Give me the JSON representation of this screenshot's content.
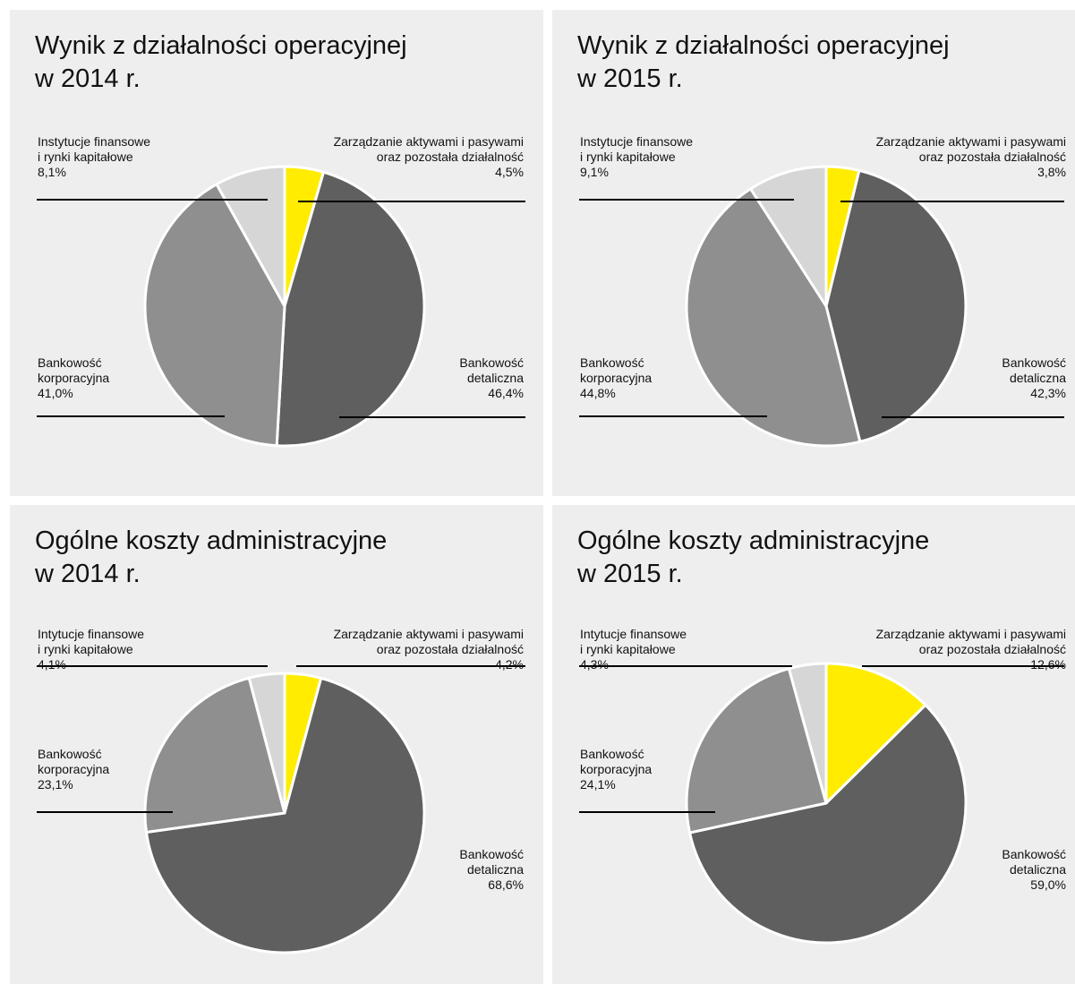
{
  "chart_data": [
    {
      "type": "pie",
      "title": [
        "Wynik z działalności operacyjnej",
        "w 2014 r."
      ],
      "slices": [
        {
          "label": [
            "Zarządzanie aktywami i pasywami",
            "oraz pozostała działalność"
          ],
          "value_label": "4,5%",
          "value": 4.5,
          "color": "#ffec00"
        },
        {
          "label": [
            "Bankowość",
            "detaliczna"
          ],
          "value_label": "46,4%",
          "value": 46.4,
          "color": "#5f5f5f"
        },
        {
          "label": [
            "Bankowość",
            "korporacyjna"
          ],
          "value_label": "41,0%",
          "value": 41.0,
          "color": "#8f8f8f"
        },
        {
          "label": [
            "Instytucje finansowe",
            "i rynki kapitałowe"
          ],
          "value_label": "8,1%",
          "value": 8.1,
          "color": "#d6d6d6"
        }
      ]
    },
    {
      "type": "pie",
      "title": [
        "Wynik z działalności operacyjnej",
        "w 2015 r."
      ],
      "slices": [
        {
          "label": [
            "Zarządzanie aktywami i pasywami",
            "oraz pozostała działalność"
          ],
          "value_label": "3,8%",
          "value": 3.8,
          "color": "#ffec00"
        },
        {
          "label": [
            "Bankowość",
            "detaliczna"
          ],
          "value_label": "42,3%",
          "value": 42.3,
          "color": "#5f5f5f"
        },
        {
          "label": [
            "Bankowość",
            "korporacyjna"
          ],
          "value_label": "44,8%",
          "value": 44.8,
          "color": "#8f8f8f"
        },
        {
          "label": [
            "Instytucje finansowe",
            "i rynki kapitałowe"
          ],
          "value_label": "9,1%",
          "value": 9.1,
          "color": "#d6d6d6"
        }
      ]
    },
    {
      "type": "pie",
      "title": [
        "Ogólne koszty administracyjne",
        "w 2014 r."
      ],
      "slices": [
        {
          "label": [
            "Zarządzanie aktywami i pasywami",
            "oraz pozostała działalność"
          ],
          "value_label": "4,2%",
          "value": 4.2,
          "color": "#ffec00"
        },
        {
          "label": [
            "Bankowość",
            "detaliczna"
          ],
          "value_label": "68,6%",
          "value": 68.6,
          "color": "#5f5f5f"
        },
        {
          "label": [
            "Bankowość",
            "korporacyjna"
          ],
          "value_label": "23,1%",
          "value": 23.1,
          "color": "#8f8f8f"
        },
        {
          "label": [
            "Intytucje finansowe",
            "i rynki kapitałowe"
          ],
          "value_label": "4,1%",
          "value": 4.1,
          "color": "#d6d6d6"
        }
      ]
    },
    {
      "type": "pie",
      "title": [
        "Ogólne koszty administracyjne",
        "w 2015 r."
      ],
      "slices": [
        {
          "label": [
            "Zarządzanie aktywami i pasywami",
            "oraz pozostała działalność"
          ],
          "value_label": "12,6%",
          "value": 12.6,
          "color": "#ffec00"
        },
        {
          "label": [
            "Bankowość",
            "detaliczna"
          ],
          "value_label": "59,0%",
          "value": 59.0,
          "color": "#5f5f5f"
        },
        {
          "label": [
            "Bankowość",
            "korporacyjna"
          ],
          "value_label": "24,1%",
          "value": 24.1,
          "color": "#8f8f8f"
        },
        {
          "label": [
            "Intytucje finansowe",
            "i rynki kapitałowe"
          ],
          "value_label": "4,3%",
          "value": 4.3,
          "color": "#d6d6d6"
        }
      ]
    }
  ]
}
